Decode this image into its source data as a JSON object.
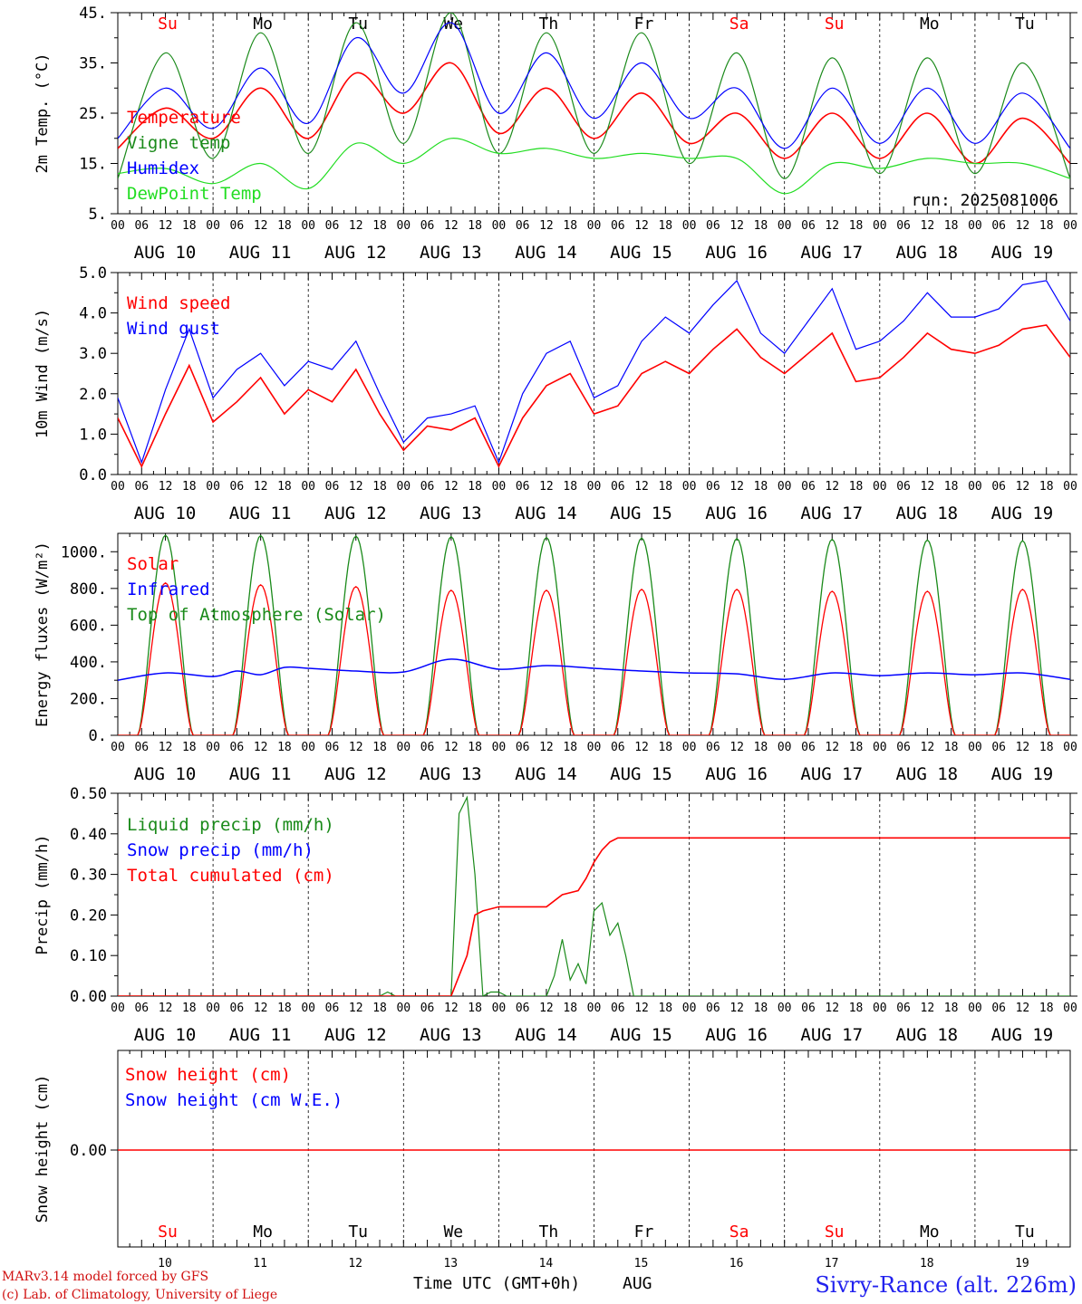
{
  "colors": {
    "red": "#ff0000",
    "dark_green": "#1a8a1a",
    "blue": "#0000ff",
    "light_green": "#22dd22",
    "weekend": "#ff0000",
    "weekday": "#000000"
  },
  "run_label": "run: 2025081006",
  "station_label": "Sivry-Rance (alt. 226m)",
  "footer": {
    "line1": "MARv3.14 model forced by GFS",
    "line2": "(c) Lab. of Climatology, University of Liege"
  },
  "x_axis_title": "Time UTC (GMT+0h)",
  "x_axis_month": "AUG",
  "hour_ticks": [
    "00",
    "06",
    "12",
    "18"
  ],
  "last_tick": "00",
  "dates": [
    "AUG 10",
    "AUG 11",
    "AUG 12",
    "AUG 13",
    "AUG 14",
    "AUG 15",
    "AUG 16",
    "AUG 17",
    "AUG 18",
    "AUG 19"
  ],
  "day_numbers": [
    "10",
    "11",
    "12",
    "13",
    "14",
    "15",
    "16",
    "17",
    "18",
    "19"
  ],
  "weekdays": [
    {
      "label": "Su",
      "weekend": true
    },
    {
      "label": "Mo",
      "weekend": false
    },
    {
      "label": "Tu",
      "weekend": false
    },
    {
      "label": "We",
      "weekend": false
    },
    {
      "label": "Th",
      "weekend": false
    },
    {
      "label": "Fr",
      "weekend": false
    },
    {
      "label": "Sa",
      "weekend": true
    },
    {
      "label": "Su",
      "weekend": true
    },
    {
      "label": "Mo",
      "weekend": false
    },
    {
      "label": "Tu",
      "weekend": false
    }
  ],
  "chart_data": [
    {
      "type": "line",
      "ylabel": "2m Temp. (°C)",
      "ylim": [
        5,
        45
      ],
      "yticks": [
        "5.",
        "15.",
        "25.",
        "35.",
        "45."
      ],
      "ytick_values": [
        5,
        15,
        25,
        35,
        45
      ],
      "x": [
        0,
        12,
        24,
        36,
        48,
        60,
        72,
        84,
        96,
        108,
        120,
        132,
        144,
        156,
        168,
        180,
        192,
        204,
        216,
        228,
        240
      ],
      "series": [
        {
          "name": "Temperature",
          "color": "red",
          "values": [
            18,
            26,
            20,
            30,
            20,
            33,
            25,
            35,
            21,
            30,
            20,
            29,
            19,
            25,
            16,
            25,
            16,
            25,
            15,
            24,
            15
          ]
        },
        {
          "name": "Vigne temp",
          "color": "dark_green",
          "values": [
            12,
            37,
            16,
            41,
            17,
            43,
            19,
            45,
            17,
            41,
            17,
            41,
            15,
            37,
            12,
            36,
            13,
            36,
            13,
            35,
            12
          ]
        },
        {
          "name": "Humidex",
          "color": "blue",
          "values": [
            20,
            30,
            22,
            34,
            23,
            40,
            29,
            43,
            25,
            37,
            24,
            35,
            24,
            30,
            18,
            30,
            19,
            30,
            19,
            29,
            18
          ]
        },
        {
          "name": "DewPoint Temp",
          "color": "light_green",
          "values": [
            13,
            14,
            11,
            15,
            10,
            19,
            15,
            20,
            17,
            18,
            16,
            17,
            16,
            16,
            9,
            15,
            14,
            16,
            15,
            15,
            12
          ]
        }
      ]
    },
    {
      "type": "line",
      "ylabel": "10m Wind (m/s)",
      "ylim": [
        0,
        5
      ],
      "yticks": [
        "0.0",
        "1.0",
        "2.0",
        "3.0",
        "4.0",
        "5.0"
      ],
      "ytick_values": [
        0,
        1,
        2,
        3,
        4,
        5
      ],
      "x": [
        0,
        6,
        12,
        18,
        24,
        30,
        36,
        42,
        48,
        54,
        60,
        66,
        72,
        78,
        84,
        90,
        96,
        102,
        108,
        114,
        120,
        126,
        132,
        138,
        144,
        150,
        156,
        162,
        168,
        174,
        180,
        186,
        192,
        198,
        204,
        210,
        216,
        222,
        228,
        234,
        240
      ],
      "series": [
        {
          "name": "Wind speed",
          "color": "red",
          "values": [
            1.4,
            0.2,
            1.5,
            2.7,
            1.3,
            1.8,
            2.4,
            1.5,
            2.1,
            1.8,
            2.6,
            1.5,
            0.6,
            1.2,
            1.1,
            1.4,
            0.2,
            1.4,
            2.2,
            2.5,
            1.5,
            1.7,
            2.5,
            2.8,
            2.5,
            3.1,
            3.6,
            2.9,
            2.5,
            3.0,
            3.5,
            2.3,
            2.4,
            2.9,
            3.5,
            3.1,
            3.0,
            3.2,
            3.6,
            3.7,
            2.9
          ]
        },
        {
          "name": "Wind gust",
          "color": "blue",
          "values": [
            1.9,
            0.3,
            2.1,
            3.6,
            1.9,
            2.6,
            3.0,
            2.2,
            2.8,
            2.6,
            3.3,
            2.0,
            0.8,
            1.4,
            1.5,
            1.7,
            0.3,
            2.0,
            3.0,
            3.3,
            1.9,
            2.2,
            3.3,
            3.9,
            3.5,
            4.2,
            4.8,
            3.5,
            3.0,
            3.8,
            4.6,
            3.1,
            3.3,
            3.8,
            4.5,
            3.9,
            3.9,
            4.1,
            4.7,
            4.8,
            3.8
          ]
        }
      ]
    },
    {
      "type": "line",
      "ylabel": "Energy fluxes (W/m²)",
      "ylim": [
        0,
        1100
      ],
      "yticks": [
        "0.",
        "200.",
        "400.",
        "600.",
        "800.",
        "1000."
      ],
      "ytick_values": [
        0,
        200,
        400,
        600,
        800,
        1000
      ],
      "diurnal": {
        "solar_peaks": [
          830,
          820,
          810,
          790,
          790,
          795,
          795,
          785,
          785,
          795
        ],
        "toa_peaks": [
          1090,
          1088,
          1085,
          1082,
          1078,
          1075,
          1072,
          1068,
          1064,
          1060
        ],
        "sunrise_hour": 5,
        "sunset_hour": 19
      },
      "series": [
        {
          "name": "Solar",
          "color": "red"
        },
        {
          "name": "Infrared",
          "color": "blue",
          "x": [
            0,
            12,
            24,
            30,
            36,
            42,
            48,
            60,
            72,
            84,
            96,
            108,
            120,
            132,
            144,
            156,
            168,
            180,
            192,
            204,
            216,
            228,
            240
          ],
          "values": [
            300,
            340,
            320,
            350,
            330,
            370,
            365,
            350,
            345,
            415,
            360,
            380,
            365,
            350,
            340,
            335,
            305,
            340,
            325,
            340,
            330,
            340,
            305
          ]
        },
        {
          "name": "Top of Atmosphere (Solar)",
          "color": "dark_green"
        }
      ]
    },
    {
      "type": "line",
      "ylabel": "Precip (mm/h)",
      "ylim": [
        0,
        0.5
      ],
      "yticks": [
        "0.00",
        "0.10",
        "0.20",
        "0.30",
        "0.40",
        "0.50"
      ],
      "ytick_values": [
        0,
        0.1,
        0.2,
        0.3,
        0.4,
        0.5
      ],
      "series": [
        {
          "name": "Liquid precip (mm/h)",
          "color": "dark_green",
          "x": [
            0,
            66,
            68,
            70,
            84,
            86,
            88,
            90,
            92,
            94,
            96,
            98,
            100,
            108,
            110,
            112,
            114,
            116,
            118,
            120,
            122,
            124,
            126,
            128,
            130,
            240
          ],
          "values": [
            0,
            0,
            0.01,
            0,
            0,
            0.45,
            0.49,
            0.3,
            0,
            0.01,
            0.01,
            0,
            0,
            0,
            0.05,
            0.14,
            0.04,
            0.08,
            0.03,
            0.21,
            0.23,
            0.15,
            0.18,
            0.1,
            0,
            0
          ]
        },
        {
          "name": "Snow precip (mm/h)",
          "color": "blue"
        },
        {
          "name": "Total cumulated (cm)",
          "color": "red",
          "x": [
            0,
            66,
            84,
            88,
            90,
            92,
            96,
            108,
            112,
            116,
            118,
            120,
            122,
            124,
            126,
            128,
            240
          ],
          "values": [
            0,
            0,
            0,
            0.1,
            0.2,
            0.21,
            0.22,
            0.22,
            0.25,
            0.26,
            0.29,
            0.33,
            0.36,
            0.38,
            0.39,
            0.39,
            0.39
          ]
        }
      ]
    },
    {
      "type": "line",
      "ylabel": "Snow height (cm)",
      "yticks": [
        "0.00"
      ],
      "series": [
        {
          "name": "Snow height (cm)",
          "color": "red",
          "x": [
            0,
            240
          ],
          "values": [
            0,
            0
          ]
        },
        {
          "name": "Snow height (cm W.E.)",
          "color": "blue"
        }
      ]
    }
  ]
}
